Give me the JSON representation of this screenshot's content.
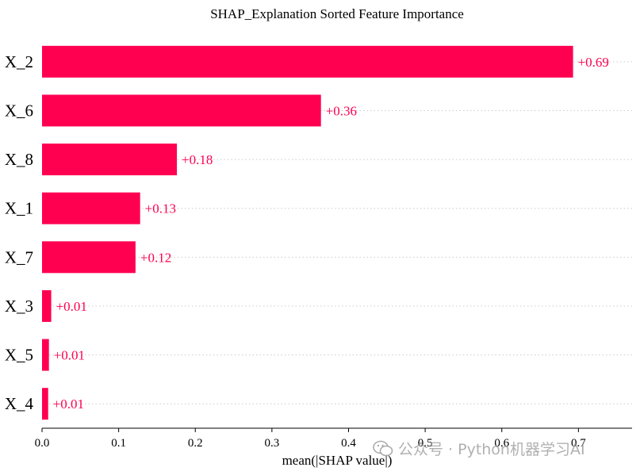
{
  "chart_data": {
    "type": "bar",
    "orientation": "horizontal",
    "title": "SHAP_Explanation Sorted Feature Importance",
    "xlabel": "mean(|SHAP value|)",
    "ylabel": "",
    "categories": [
      "X_2",
      "X_6",
      "X_8",
      "X_1",
      "X_7",
      "X_3",
      "X_5",
      "X_4"
    ],
    "values": [
      0.693,
      0.364,
      0.176,
      0.128,
      0.122,
      0.012,
      0.009,
      0.008
    ],
    "data_labels": [
      "+0.69",
      "+0.36",
      "+0.18",
      "+0.13",
      "+0.12",
      "+0.01",
      "+0.01",
      "+0.01"
    ],
    "xlim": [
      0,
      0.77
    ],
    "xticks": [
      0.0,
      0.1,
      0.2,
      0.3,
      0.4,
      0.5,
      0.6,
      0.7
    ],
    "xtick_labels": [
      "0.0",
      "0.1",
      "0.2",
      "0.3",
      "0.4",
      "0.5",
      "0.6",
      "0.7"
    ],
    "grid": "dotted horizontal lines at each bar",
    "colors": {
      "bar": "#ff0051",
      "label": "#ff0051",
      "grid": "#cccccc",
      "axis": "#000000"
    }
  },
  "watermark": {
    "icon": "wechat-icon",
    "text": "公众号 · Python机器学习AI"
  }
}
